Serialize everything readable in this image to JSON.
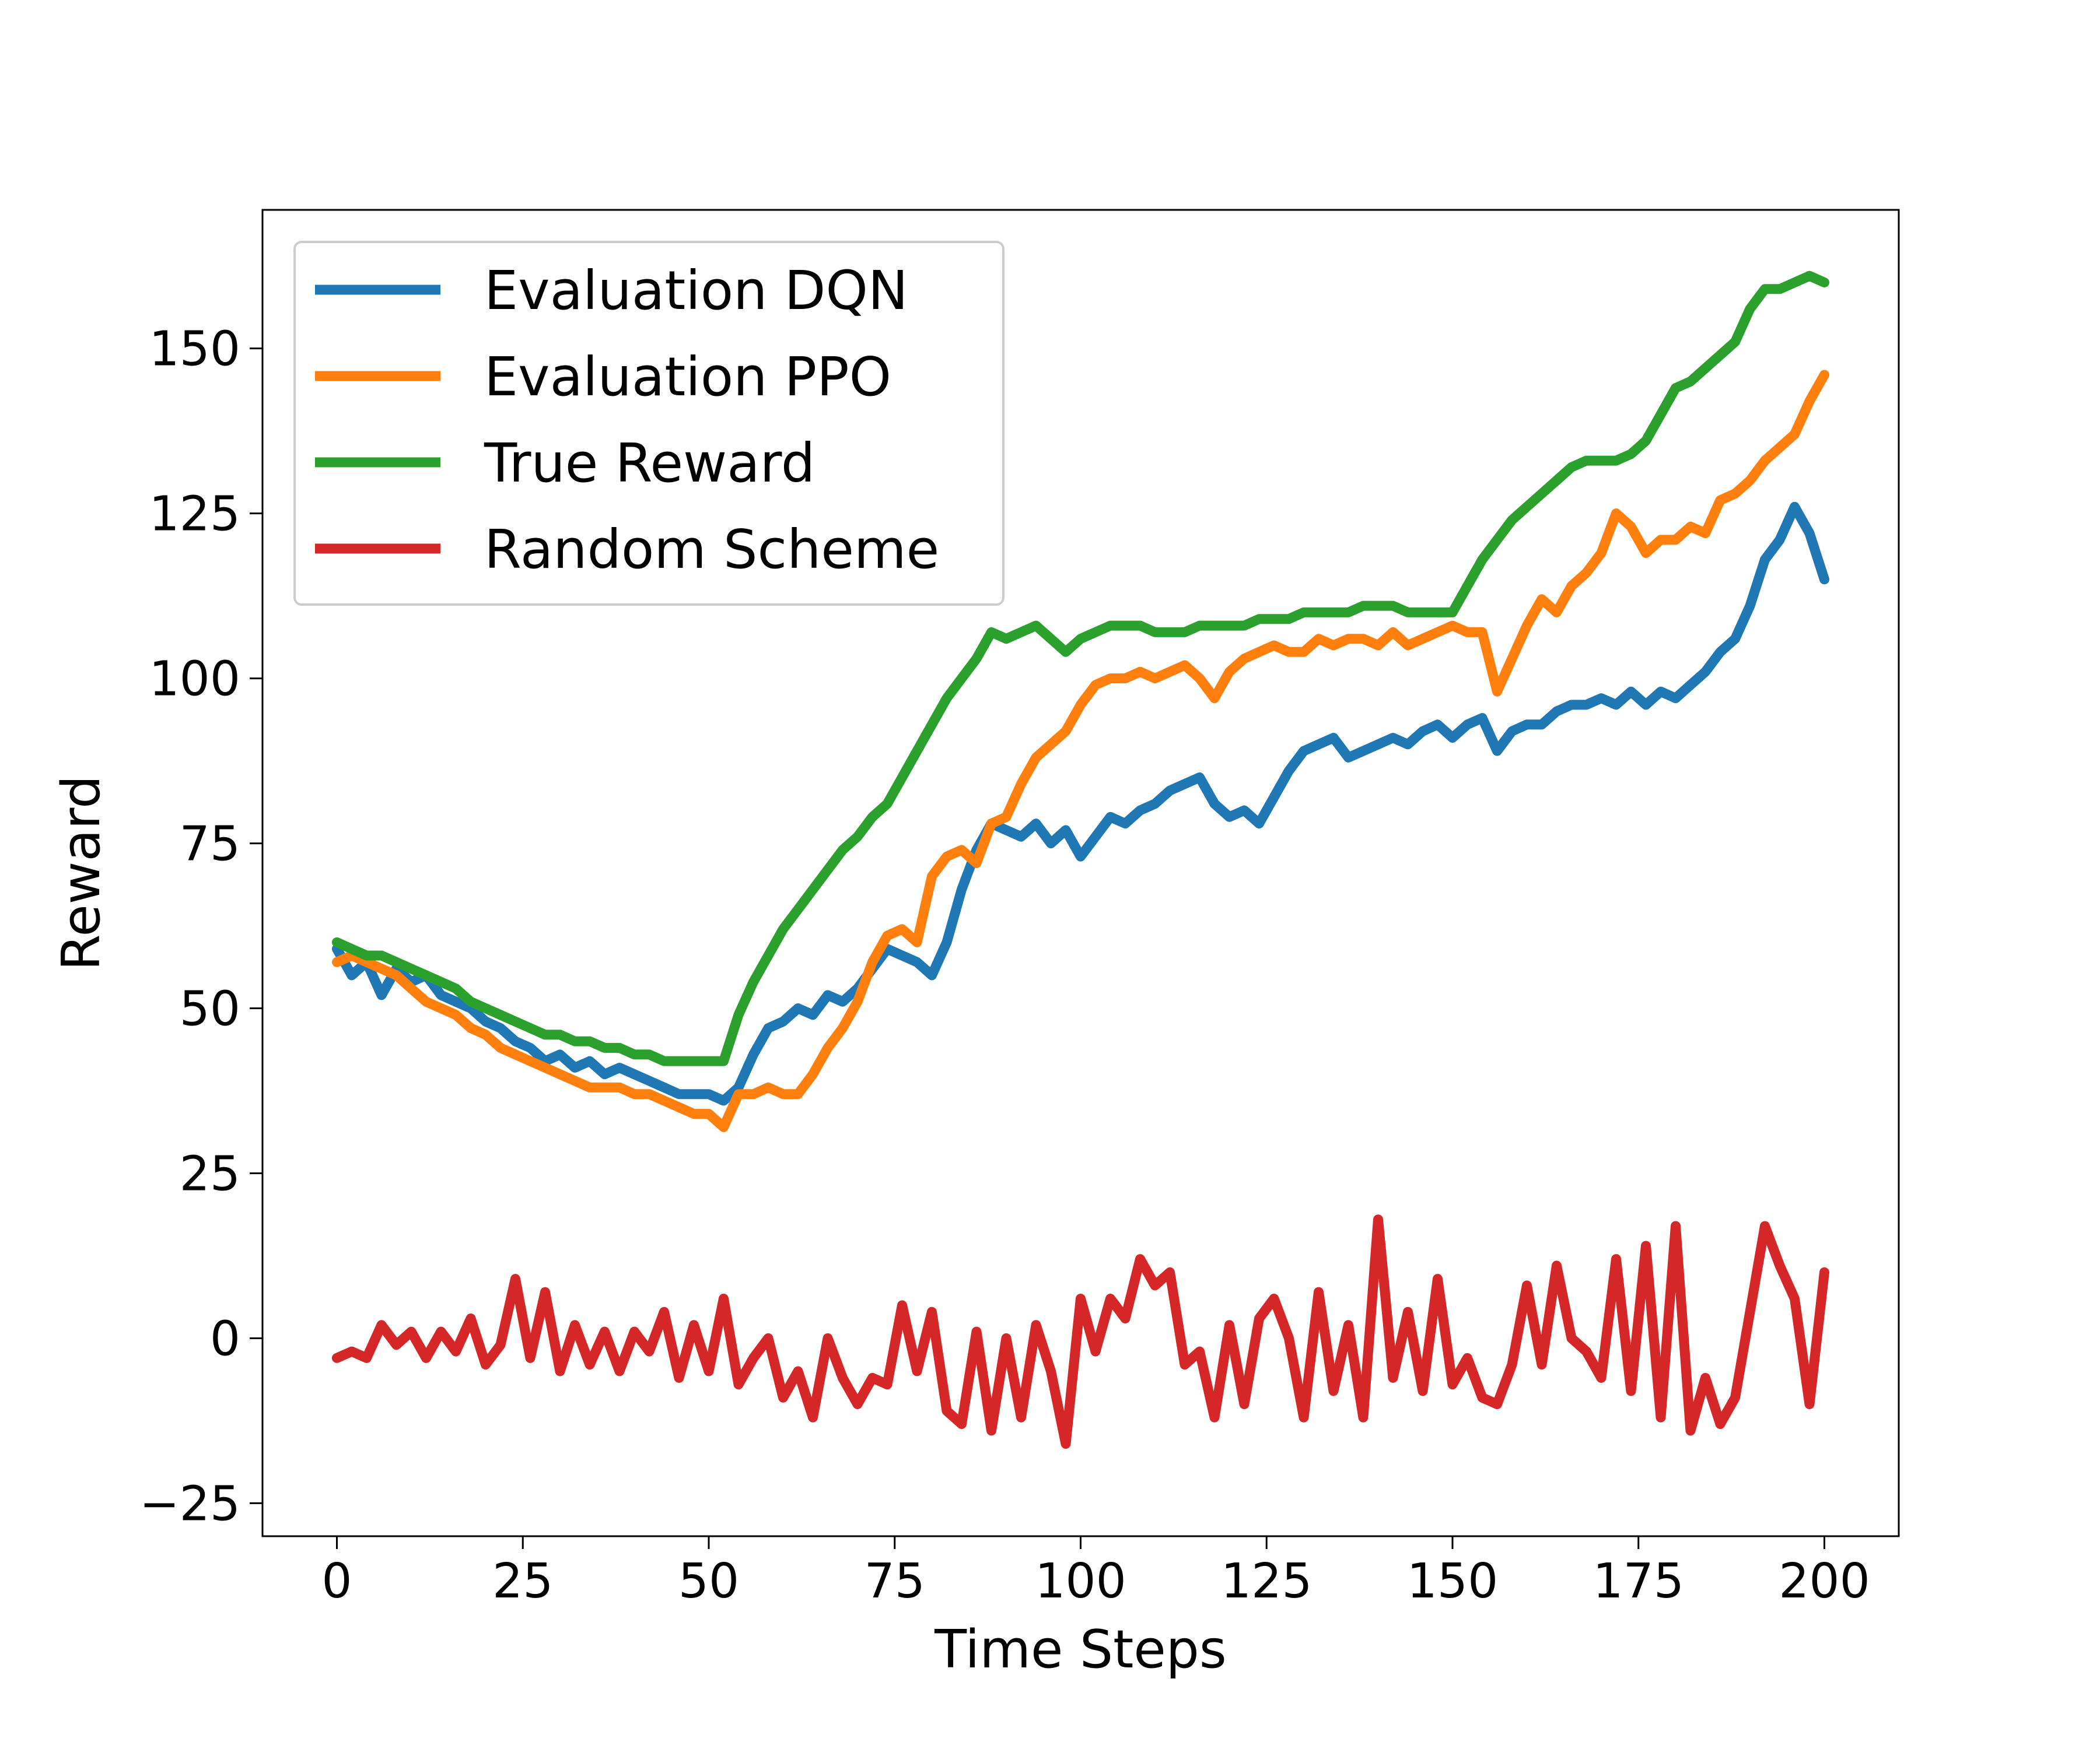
{
  "chart_data": {
    "type": "line",
    "title": "",
    "xlabel": "Time Steps",
    "ylabel": "Reward",
    "xlim": [
      -10,
      210
    ],
    "ylim": [
      -30,
      171
    ],
    "xticks": [
      0,
      25,
      50,
      75,
      100,
      125,
      150,
      175,
      200
    ],
    "yticks": [
      -25,
      0,
      25,
      50,
      75,
      100,
      125,
      150
    ],
    "ytick_labels": [
      "−25",
      "0",
      "25",
      "50",
      "75",
      "100",
      "125",
      "150"
    ],
    "grid": false,
    "legend_position": "upper left",
    "series": [
      {
        "name": "Evaluation DQN",
        "color": "#1f77b4",
        "x": [
          0,
          2,
          4,
          6,
          8,
          10,
          12,
          14,
          16,
          18,
          20,
          22,
          24,
          26,
          28,
          30,
          32,
          34,
          36,
          38,
          40,
          42,
          44,
          46,
          48,
          50,
          52,
          54,
          56,
          58,
          60,
          62,
          64,
          66,
          68,
          70,
          72,
          74,
          76,
          78,
          80,
          82,
          84,
          86,
          88,
          90,
          92,
          94,
          96,
          98,
          100,
          102,
          104,
          106,
          108,
          110,
          112,
          114,
          116,
          118,
          120,
          122,
          124,
          126,
          128,
          130,
          132,
          134,
          136,
          138,
          140,
          142,
          144,
          146,
          148,
          150,
          152,
          154,
          156,
          158,
          160,
          162,
          164,
          166,
          168,
          170,
          172,
          174,
          176,
          178,
          180,
          182,
          184,
          186,
          188,
          190,
          192,
          194,
          196,
          198,
          200
        ],
        "values": [
          59,
          55,
          57,
          52,
          56,
          54,
          55,
          52,
          51,
          50,
          48,
          47,
          45,
          44,
          42,
          43,
          41,
          42,
          40,
          41,
          40,
          39,
          38,
          37,
          37,
          37,
          36,
          38,
          43,
          47,
          48,
          50,
          49,
          52,
          51,
          53,
          56,
          59,
          58,
          57,
          55,
          60,
          68,
          74,
          78,
          77,
          76,
          78,
          75,
          77,
          73,
          76,
          79,
          78,
          80,
          81,
          83,
          84,
          85,
          81,
          79,
          80,
          78,
          82,
          86,
          89,
          90,
          91,
          88,
          89,
          90,
          91,
          90,
          92,
          93,
          91,
          93,
          94,
          89,
          92,
          93,
          93,
          95,
          96,
          96,
          97,
          96,
          98,
          96,
          98,
          97,
          99,
          101,
          104,
          106,
          111,
          118,
          121,
          126,
          122,
          115
        ],
        "markers": false
      },
      {
        "name": "Evaluation PPO",
        "color": "#ff7f0e",
        "x": [
          0,
          2,
          4,
          6,
          8,
          10,
          12,
          14,
          16,
          18,
          20,
          22,
          24,
          26,
          28,
          30,
          32,
          34,
          36,
          38,
          40,
          42,
          44,
          46,
          48,
          50,
          52,
          54,
          56,
          58,
          60,
          62,
          64,
          66,
          68,
          70,
          72,
          74,
          76,
          78,
          80,
          82,
          84,
          86,
          88,
          90,
          92,
          94,
          96,
          98,
          100,
          102,
          104,
          106,
          108,
          110,
          112,
          114,
          116,
          118,
          120,
          122,
          124,
          126,
          128,
          130,
          132,
          134,
          136,
          138,
          140,
          142,
          144,
          146,
          148,
          150,
          152,
          154,
          156,
          158,
          160,
          162,
          164,
          166,
          168,
          170,
          172,
          174,
          176,
          178,
          180,
          182,
          184,
          186,
          188,
          190,
          192,
          194,
          196,
          198,
          200
        ],
        "values": [
          57,
          58,
          57,
          56,
          55,
          53,
          51,
          50,
          49,
          47,
          46,
          44,
          43,
          42,
          41,
          40,
          39,
          38,
          38,
          38,
          37,
          37,
          36,
          35,
          34,
          34,
          32,
          37,
          37,
          38,
          37,
          37,
          40,
          44,
          47,
          51,
          57,
          61,
          62,
          60,
          70,
          73,
          74,
          72,
          78,
          79,
          84,
          88,
          90,
          92,
          96,
          99,
          100,
          100,
          101,
          100,
          101,
          102,
          100,
          97,
          101,
          103,
          104,
          105,
          104,
          104,
          106,
          105,
          106,
          106,
          105,
          107,
          105,
          106,
          107,
          108,
          107,
          107,
          98,
          103,
          108,
          112,
          110,
          114,
          116,
          119,
          125,
          123,
          119,
          121,
          121,
          123,
          122,
          127,
          128,
          130,
          133,
          135,
          137,
          142,
          146
        ],
        "markers": false
      },
      {
        "name": "True Reward",
        "color": "#2ca02c",
        "x": [
          0,
          2,
          4,
          6,
          8,
          10,
          12,
          14,
          16,
          18,
          20,
          22,
          24,
          26,
          28,
          30,
          32,
          34,
          36,
          38,
          40,
          42,
          44,
          46,
          48,
          50,
          52,
          54,
          56,
          58,
          60,
          62,
          64,
          66,
          68,
          70,
          72,
          74,
          76,
          78,
          80,
          82,
          84,
          86,
          88,
          90,
          92,
          94,
          96,
          98,
          100,
          102,
          104,
          106,
          108,
          110,
          112,
          114,
          116,
          118,
          120,
          122,
          124,
          126,
          128,
          130,
          132,
          134,
          136,
          138,
          140,
          142,
          144,
          146,
          148,
          150,
          152,
          154,
          156,
          158,
          160,
          162,
          164,
          166,
          168,
          170,
          172,
          174,
          176,
          178,
          180,
          182,
          184,
          186,
          188,
          190,
          192,
          194,
          196,
          198,
          200
        ],
        "values": [
          60,
          59,
          58,
          58,
          57,
          56,
          55,
          54,
          53,
          51,
          50,
          49,
          48,
          47,
          46,
          46,
          45,
          45,
          44,
          44,
          43,
          43,
          42,
          42,
          42,
          42,
          42,
          49,
          54,
          58,
          62,
          65,
          68,
          71,
          74,
          76,
          79,
          81,
          85,
          89,
          93,
          97,
          100,
          103,
          107,
          106,
          107,
          108,
          106,
          104,
          106,
          107,
          108,
          108,
          108,
          107,
          107,
          107,
          108,
          108,
          108,
          108,
          109,
          109,
          109,
          110,
          110,
          110,
          110,
          111,
          111,
          111,
          110,
          110,
          110,
          110,
          114,
          118,
          121,
          124,
          126,
          128,
          130,
          132,
          133,
          133,
          133,
          134,
          136,
          140,
          144,
          145,
          147,
          149,
          151,
          156,
          159,
          159,
          160,
          161,
          160
        ],
        "markers": false
      },
      {
        "name": "Random Scheme",
        "color": "#d62728",
        "x": [
          0,
          2,
          4,
          6,
          8,
          10,
          12,
          14,
          16,
          18,
          20,
          22,
          24,
          26,
          28,
          30,
          32,
          34,
          36,
          38,
          40,
          42,
          44,
          46,
          48,
          50,
          52,
          54,
          56,
          58,
          60,
          62,
          64,
          66,
          68,
          70,
          72,
          74,
          76,
          78,
          80,
          82,
          84,
          86,
          88,
          90,
          92,
          94,
          96,
          98,
          100,
          102,
          104,
          106,
          108,
          110,
          112,
          114,
          116,
          118,
          120,
          122,
          124,
          126,
          128,
          130,
          132,
          134,
          136,
          138,
          140,
          142,
          144,
          146,
          148,
          150,
          152,
          154,
          156,
          158,
          160,
          162,
          164,
          166,
          168,
          170,
          172,
          174,
          176,
          178,
          180,
          182,
          184,
          186,
          188,
          190,
          192,
          194,
          196,
          198,
          200
        ],
        "values": [
          -3,
          -2,
          -3,
          2,
          -1,
          1,
          -3,
          1,
          -2,
          3,
          -4,
          -1,
          9,
          -3,
          7,
          -5,
          2,
          -4,
          1,
          -5,
          1,
          -2,
          4,
          -6,
          2,
          -5,
          6,
          -7,
          -3,
          0,
          -9,
          -5,
          -12,
          0,
          -6,
          -10,
          -6,
          -7,
          5,
          -5,
          4,
          -11,
          -13,
          1,
          -14,
          0,
          -12,
          2,
          -5,
          -16,
          6,
          -2,
          6,
          3,
          12,
          8,
          10,
          -4,
          -2,
          -12,
          2,
          -10,
          3,
          6,
          0,
          -12,
          7,
          -8,
          2,
          -12,
          18,
          -6,
          4,
          -8,
          9,
          -7,
          -3,
          -9,
          -10,
          -4,
          8,
          -4,
          11,
          0,
          -2,
          -6,
          12,
          -8,
          14,
          -12,
          17,
          -14,
          -6,
          -13,
          -9,
          4,
          17,
          11,
          6,
          -10,
          10
        ],
        "markers": false
      }
    ]
  }
}
